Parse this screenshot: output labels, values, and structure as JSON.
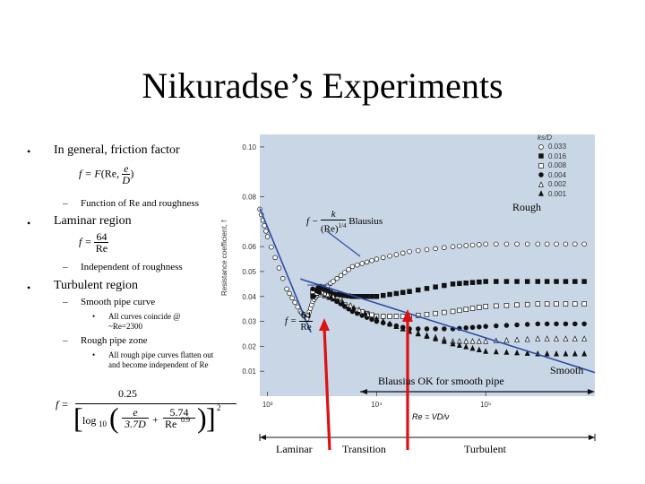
{
  "slide": {
    "title": "Nikuradse’s Experiments",
    "bullets": [
      {
        "text": "In general, friction factor"
      },
      {
        "text": "Function of Re and roughness"
      },
      {
        "text": "Laminar region"
      },
      {
        "text": "Independent of roughness"
      },
      {
        "text": "Turbulent region"
      },
      {
        "text": "Smooth pipe curve"
      },
      {
        "text": "All curves coincide @ ~Re=2300"
      },
      {
        "text": "Rough pipe zone"
      },
      {
        "text": "All rough pipe curves flatten out and become independent of Re"
      }
    ],
    "bullet_symbol": "•",
    "dash_symbol": "–"
  },
  "equations": {
    "general": {
      "lhs": "f = F",
      "args": "(Re, ",
      "num": "e",
      "den": "D",
      "close": ")"
    },
    "laminar": {
      "lhs": "f =",
      "num": "64",
      "den": "Re"
    },
    "colebrook": {
      "lhs": "f =",
      "num": "0.25",
      "log": "log",
      "sub": "10",
      "t1_num": "e",
      "t1_den": "3.7D",
      "plus": "+",
      "t2_num": "5.74",
      "t2_den": "Re",
      "t2_exp": "0.9",
      "sq": "2"
    }
  },
  "chart_labels": {
    "rough": "Rough",
    "smooth": "Smooth",
    "blasius_ok": "Blausius OK for smooth pipe",
    "blasius_name": "Blausius",
    "blasius_lhs": "f −",
    "blasius_num": "k",
    "blasius_den": "(Re)",
    "blasius_exp": "1/4",
    "laminar_lhs": "f =",
    "laminar_num": "64",
    "laminar_den": "Re",
    "re_def": "Re = VD/ν",
    "regions": {
      "laminar": "Laminar",
      "transition": "Transition",
      "turbulent": "Turbulent"
    }
  },
  "chart_data": {
    "type": "scatter",
    "xlabel": "Re = VD/ν",
    "ylabel": "Resistance coefficient, f",
    "x_scale": "log",
    "xlim": [
      850,
      1000000
    ],
    "ylim": [
      0,
      0.105
    ],
    "x_ticks": [
      "10³",
      "10⁴",
      "10⁵"
    ],
    "x_tick_values": [
      1000,
      10000,
      100000
    ],
    "y_ticks": [
      "0.10",
      "0.08",
      "0.06",
      "0.05",
      "0.04",
      "0.03",
      "0.02",
      "0.01"
    ],
    "y_tick_values": [
      0.1,
      0.08,
      0.06,
      0.05,
      0.04,
      0.03,
      0.02,
      0.01
    ],
    "legend_title": "ks/D",
    "legend_position": "top-right",
    "series": [
      {
        "name": "0.033",
        "marker": "open-circle",
        "x": [
          850,
          1000,
          1500,
          2000,
          2300,
          2600,
          3000,
          4000,
          6000,
          10000,
          20000,
          50000,
          100000,
          300000,
          800000
        ],
        "f": [
          0.075,
          0.064,
          0.043,
          0.034,
          0.031,
          0.038,
          0.042,
          0.046,
          0.052,
          0.055,
          0.058,
          0.06,
          0.061,
          0.061,
          0.061
        ]
      },
      {
        "name": "0.016",
        "marker": "filled-square",
        "x": [
          2600,
          3000,
          4000,
          6000,
          10000,
          20000,
          50000,
          100000,
          300000,
          800000
        ],
        "f": [
          0.04,
          0.044,
          0.041,
          0.04,
          0.04,
          0.042,
          0.045,
          0.046,
          0.046,
          0.046
        ]
      },
      {
        "name": "0.008",
        "marker": "open-square",
        "x": [
          2600,
          4000,
          6000,
          10000,
          20000,
          50000,
          100000,
          300000,
          800000
        ],
        "f": [
          0.042,
          0.039,
          0.035,
          0.032,
          0.032,
          0.034,
          0.036,
          0.037,
          0.037
        ]
      },
      {
        "name": "0.004",
        "marker": "filled-circle",
        "x": [
          2600,
          4000,
          6000,
          10000,
          20000,
          50000,
          100000,
          300000,
          800000
        ],
        "f": [
          0.043,
          0.039,
          0.034,
          0.03,
          0.027,
          0.027,
          0.028,
          0.029,
          0.029
        ]
      },
      {
        "name": "0.002",
        "marker": "open-triangle",
        "x": [
          3000,
          4000,
          10000,
          20000,
          50000,
          100000,
          300000,
          800000
        ],
        "f": [
          0.042,
          0.04,
          0.031,
          0.026,
          0.022,
          0.022,
          0.023,
          0.023
        ]
      },
      {
        "name": "0.001",
        "marker": "filled-triangle",
        "x": [
          3000,
          10000,
          20000,
          50000,
          100000,
          300000,
          800000
        ],
        "f": [
          0.042,
          0.031,
          0.026,
          0.021,
          0.018,
          0.017,
          0.017
        ]
      }
    ],
    "curves": [
      {
        "name": "Blausius",
        "x": [
          2000,
          1000000
        ],
        "f": [
          0.047,
          0.0095
        ]
      },
      {
        "name": "f = 64/Re",
        "x": [
          850,
          2500
        ],
        "f": [
          0.0753,
          0.0256
        ]
      }
    ],
    "annotations": [
      "Rough",
      "Smooth",
      "Blausius OK for smooth pipe"
    ]
  },
  "colors": {
    "plot_bg": "#c8d6e6",
    "curve": "#2c4ca2",
    "arrow_red": "#dd1111",
    "text": "#000000"
  }
}
